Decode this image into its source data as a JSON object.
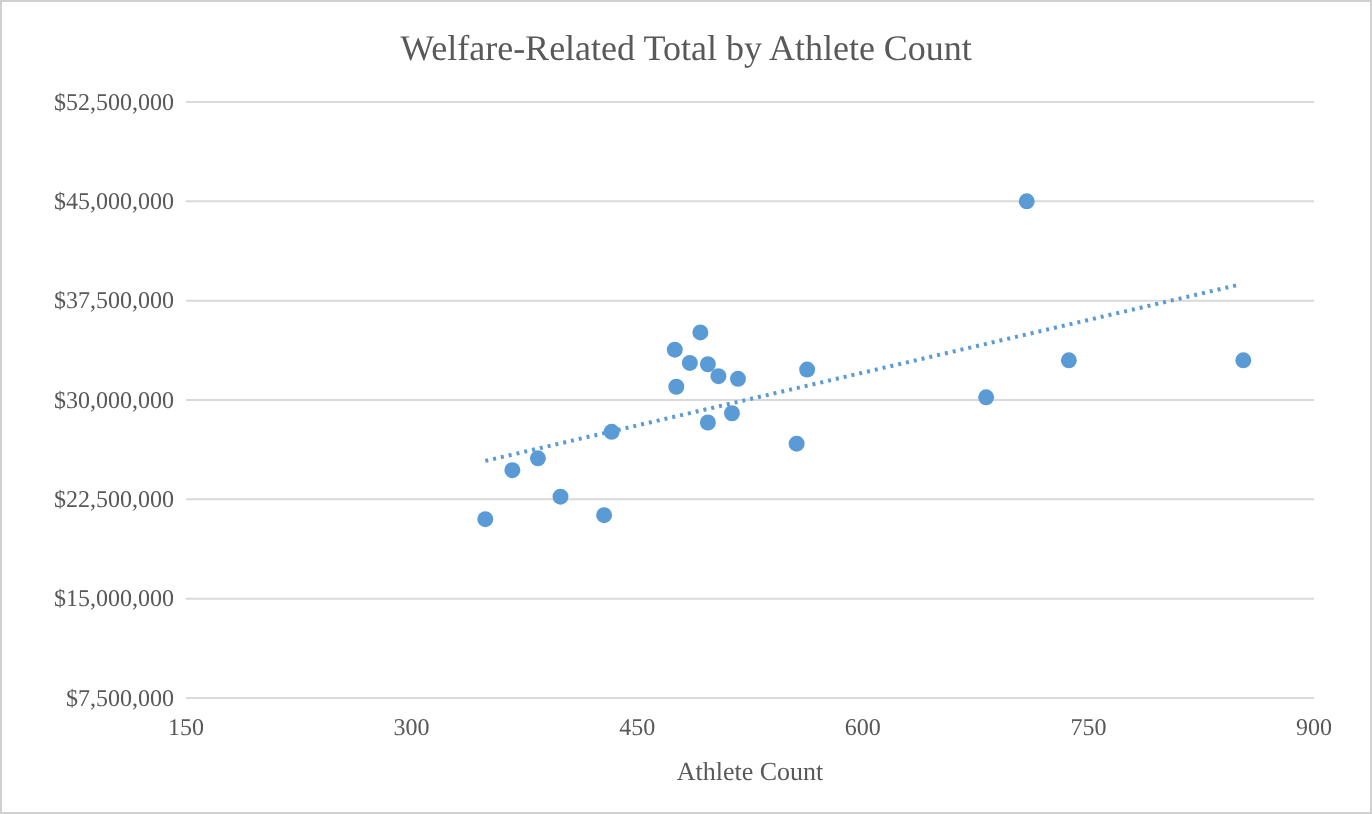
{
  "chart_data": {
    "type": "scatter",
    "title": "Welfare-Related Total by Athlete Count",
    "xlabel": "Athlete Count",
    "xlim": [
      150,
      900
    ],
    "xticks": [
      150,
      300,
      450,
      600,
      750,
      900
    ],
    "ylim": [
      7500000,
      52500000
    ],
    "yticks": [
      {
        "value": 7500000,
        "label": "$7,500,000"
      },
      {
        "value": 15000000,
        "label": "$15,000,000"
      },
      {
        "value": 22500000,
        "label": "$22,500,000"
      },
      {
        "value": 30000000,
        "label": "$30,000,000"
      },
      {
        "value": 37500000,
        "label": "$37,500,000"
      },
      {
        "value": 45000000,
        "label": "$45,000,000"
      },
      {
        "value": 52500000,
        "label": "$52,500,000"
      }
    ],
    "grid": "y",
    "marker": "circle",
    "series": [
      {
        "color": "#5b9bd5",
        "x": [
          349,
          367,
          384,
          399,
          428,
          433,
          475,
          476,
          485,
          492,
          497,
          497,
          504,
          513,
          517,
          556,
          563,
          682,
          709,
          737,
          853
        ],
        "values": [
          21000000,
          24700000,
          25600000,
          22700000,
          21300000,
          27600000,
          33800000,
          31000000,
          32800000,
          35100000,
          32700000,
          28300000,
          31800000,
          29000000,
          31600000,
          26700000,
          32300000,
          30200000,
          45000000,
          33000000,
          33000000
        ]
      },
      {
        "type": "line",
        "color": "#5b9bd5",
        "line_style": "dotted",
        "marker": "none",
        "x": [
          349,
          850
        ],
        "values": [
          25400000,
          38700000
        ]
      }
    ]
  }
}
